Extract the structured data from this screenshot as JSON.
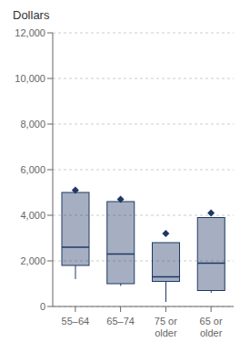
{
  "chart_data": {
    "type": "box",
    "title": "Dollars",
    "categories": [
      "55–64",
      "65–74",
      "75 or\nolder",
      "65 or\nolder"
    ],
    "whisker_low": [
      1200,
      900,
      200,
      600
    ],
    "q1": [
      1800,
      1000,
      1100,
      700
    ],
    "median": [
      2600,
      2300,
      1300,
      1900
    ],
    "q3": [
      5000,
      4600,
      2800,
      3900
    ],
    "whisker_high": [
      5000,
      4600,
      2800,
      3900
    ],
    "mean": [
      5100,
      4700,
      3200,
      4100
    ],
    "ylim": [
      0,
      12000
    ],
    "yticks": [
      0,
      {
        "value": 2000,
        "label": "2,000"
      },
      {
        "value": 4000,
        "label": "4,000"
      },
      {
        "value": 6000,
        "label": "6,000"
      },
      {
        "value": 8000,
        "label": "8,000"
      },
      {
        "value": 10000,
        "label": "10,000"
      },
      {
        "value": 12000,
        "label": "12,000"
      }
    ],
    "grid": true,
    "color": "#1F3864"
  }
}
